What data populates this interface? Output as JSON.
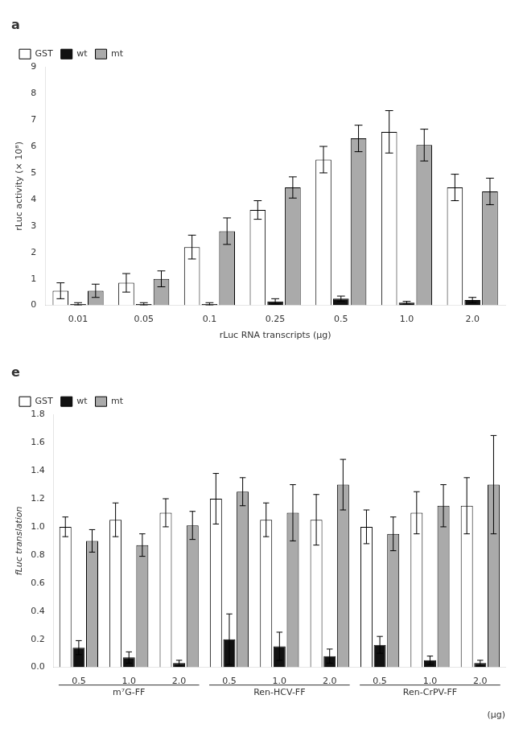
{
  "chart_data": [
    {
      "type": "bar",
      "title": "a",
      "xlabel": "rLuc RNA transcripts (μg)",
      "ylabel": "rLuc activity (× 10⁸)",
      "categories": [
        "0.01",
        "0.05",
        "0.1",
        "0.25",
        "0.5",
        "1.0",
        "2.0"
      ],
      "series": [
        {
          "name": "GST",
          "color": "#ffffff",
          "values": [
            0.55,
            0.85,
            2.2,
            3.6,
            5.5,
            6.55,
            4.45
          ],
          "errors": [
            0.3,
            0.35,
            0.45,
            0.35,
            0.5,
            0.8,
            0.5
          ]
        },
        {
          "name": "wt",
          "color": "#111111",
          "values": [
            0.05,
            0.05,
            0.05,
            0.15,
            0.25,
            0.1,
            0.2
          ],
          "errors": [
            0.05,
            0.05,
            0.05,
            0.1,
            0.1,
            0.05,
            0.1
          ]
        },
        {
          "name": "mt",
          "color": "#aaaaaa",
          "values": [
            0.55,
            1.0,
            2.8,
            4.45,
            6.3,
            6.05,
            4.3
          ],
          "errors": [
            0.25,
            0.3,
            0.5,
            0.4,
            0.5,
            0.6,
            0.5
          ]
        }
      ],
      "ylim": [
        0,
        9
      ],
      "yticks": [
        0,
        1,
        2,
        3,
        4,
        5,
        6,
        7,
        8,
        9
      ],
      "grid": false,
      "legend": "upper left"
    },
    {
      "type": "bar",
      "title": "e",
      "xlabel": "(μg)",
      "ylabel": "fLuc translation",
      "categories": [
        "0.5",
        "1.0",
        "2.0",
        "0.5",
        "1.0",
        "2.0",
        "0.5",
        "1.0",
        "2.0"
      ],
      "groups": [
        "m⁷G-FF",
        "Ren-HCV-FF",
        "Ren-CrPV-FF"
      ],
      "series": [
        {
          "name": "GST",
          "color": "#ffffff",
          "values": [
            1.0,
            1.05,
            1.1,
            1.2,
            1.05,
            1.05,
            1.0,
            1.1,
            1.15
          ],
          "errors": [
            0.07,
            0.12,
            0.1,
            0.18,
            0.12,
            0.18,
            0.12,
            0.15,
            0.2
          ]
        },
        {
          "name": "wt",
          "color": "#111111",
          "values": [
            0.14,
            0.07,
            0.03,
            0.2,
            0.15,
            0.08,
            0.16,
            0.05,
            0.03
          ],
          "errors": [
            0.05,
            0.04,
            0.02,
            0.18,
            0.1,
            0.05,
            0.06,
            0.03,
            0.02
          ]
        },
        {
          "name": "mt",
          "color": "#aaaaaa",
          "values": [
            0.9,
            0.87,
            1.01,
            1.25,
            1.1,
            1.3,
            0.95,
            1.15,
            1.3
          ],
          "errors": [
            0.08,
            0.08,
            0.1,
            0.1,
            0.2,
            0.18,
            0.12,
            0.15,
            0.35
          ]
        }
      ],
      "ylim": [
        0,
        1.8
      ],
      "yticks": [
        {
          "value": 0,
          "label": "0.0"
        },
        0.2,
        0.4,
        0.6,
        0.8,
        {
          "value": 1,
          "label": "1.0"
        },
        1.2,
        1.4,
        1.6,
        1.8
      ],
      "grid": false,
      "legend": "upper left"
    }
  ]
}
